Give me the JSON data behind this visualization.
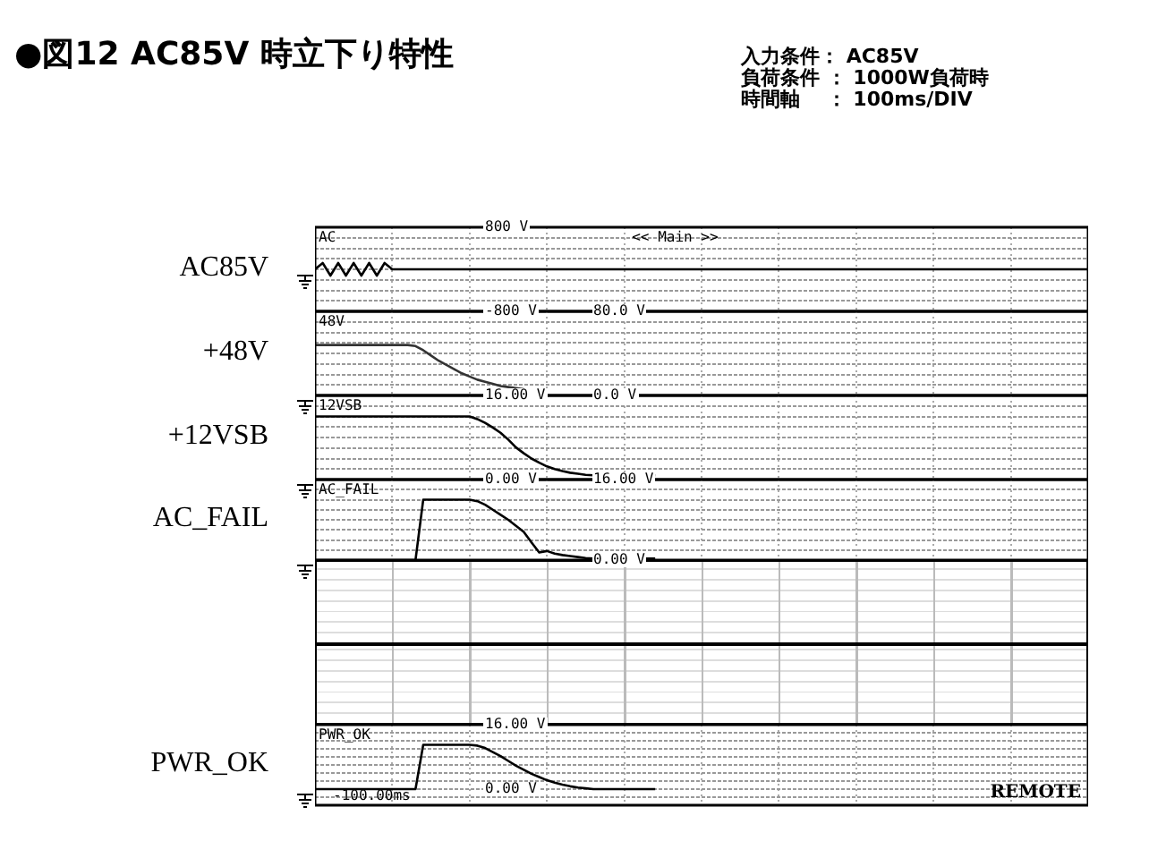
{
  "chart_data": [
    {
      "type": "other",
      "title": "●図12 AC85V 時立下り特性",
      "annotations": [
        "入力条件： AC85V",
        "負荷条件 ： 1000W負荷時",
        "時間軸　 ： 100ms/DIV"
      ]
    },
    {
      "type": "line",
      "ylabel": "AC85V",
      "annotations": [
        "<< Main >>"
      ],
      "grid": true,
      "legend": "top left",
      "tick_labels": "y",
      "marker": "none",
      "categories": [
        null,
        null,
        null,
        null,
        null,
        null,
        null,
        null,
        null,
        null,
        null,
        null,
        null,
        null,
        null,
        null,
        null,
        null,
        null,
        null,
        null,
        null,
        null,
        null,
        null,
        null,
        null,
        null,
        null,
        null,
        null,
        null,
        null,
        null,
        null,
        null,
        null,
        null,
        null,
        null,
        null,
        null,
        null,
        null,
        null,
        null,
        null,
        null,
        null,
        null,
        null,
        null,
        null,
        null,
        null,
        null,
        null,
        null,
        null,
        null,
        null,
        null,
        null,
        null,
        null,
        null,
        null,
        null,
        null,
        null,
        null,
        null,
        null,
        null,
        null,
        null,
        null,
        null,
        null,
        null,
        null,
        null,
        null,
        null,
        null,
        null,
        null,
        null,
        null,
        null,
        null,
        null,
        null,
        null,
        null,
        null,
        null,
        null,
        null,
        null,
        null
      ],
      "ylim": [
        -800,
        800
      ],
      "yticks": [
        {
          "value": -800,
          "label": "-800 V"
        },
        {
          "value": -600,
          "label": null
        },
        {
          "value": -400,
          "label": null
        },
        {
          "value": -200,
          "label": null
        },
        {
          "value": 0,
          "label": null
        },
        {
          "value": 200,
          "label": null
        },
        {
          "value": 400,
          "label": null
        },
        {
          "value": 600,
          "label": null
        },
        {
          "value": 800,
          "label": "800 V"
        }
      ],
      "series": [
        {
          "name": "AC",
          "color": "#000000",
          "values": [
            0,
            120,
            -120,
            120,
            -120,
            120,
            -120,
            120,
            -120,
            120,
            0,
            0,
            0,
            0,
            0,
            0,
            0,
            0,
            0,
            0,
            0,
            0,
            0,
            0,
            0,
            0,
            0,
            0,
            0,
            0,
            0,
            0,
            0,
            0,
            0,
            0,
            0,
            0,
            0,
            0,
            0,
            0,
            0,
            0,
            0,
            0,
            0,
            0,
            0,
            0,
            0,
            0,
            0,
            0,
            0,
            0,
            0,
            0,
            0,
            0,
            0,
            0,
            0,
            0,
            0,
            0,
            0,
            0,
            0,
            0,
            0,
            0,
            0,
            0,
            0,
            0,
            0,
            0,
            0,
            0,
            0,
            0,
            0,
            0,
            0,
            0,
            0,
            0,
            0,
            0,
            0,
            0,
            0,
            0,
            0,
            0,
            0,
            0,
            0,
            0,
            0
          ]
        }
      ]
    },
    {
      "type": "line",
      "ylabel": "+48V",
      "grid": true,
      "legend": "top left",
      "tick_labels": "y",
      "marker": "none",
      "categories": [
        null,
        null,
        null,
        null,
        null,
        null,
        null,
        null,
        null,
        null,
        null,
        null,
        null,
        null,
        null,
        null,
        null,
        null,
        null,
        null,
        null,
        null,
        null,
        null,
        null,
        null,
        null,
        null,
        null,
        null,
        null,
        null,
        null,
        null,
        null,
        null,
        null,
        null,
        null,
        null,
        null,
        null,
        null,
        null,
        null,
        null,
        null,
        null,
        null,
        null,
        null,
        null,
        null,
        null,
        null,
        null,
        null,
        null,
        null,
        null,
        null,
        null,
        null,
        null,
        null,
        null,
        null,
        null,
        null,
        null,
        null,
        null,
        null,
        null,
        null,
        null,
        null,
        null,
        null,
        null,
        null,
        null,
        null,
        null,
        null,
        null,
        null,
        null,
        null,
        null,
        null,
        null,
        null,
        null,
        null,
        null,
        null,
        null,
        null,
        null,
        null
      ],
      "ylim": [
        0,
        80
      ],
      "yticks": [
        {
          "value": 0,
          "label": "0.0 V"
        },
        {
          "value": 10,
          "label": null
        },
        {
          "value": 20,
          "label": null
        },
        {
          "value": 30,
          "label": null
        },
        {
          "value": 40,
          "label": null
        },
        {
          "value": 50,
          "label": null
        },
        {
          "value": 60,
          "label": null
        },
        {
          "value": 70,
          "label": null
        },
        {
          "value": 80,
          "label": "80.0 V"
        }
      ],
      "series": [
        {
          "name": "48V",
          "color": "#333333",
          "values": [
            48,
            48,
            48,
            48,
            48,
            48,
            48,
            48,
            48,
            48,
            48,
            48,
            48,
            47,
            43,
            38,
            33,
            29,
            25,
            21,
            18,
            15,
            13,
            11,
            9,
            8,
            7,
            6,
            null,
            null,
            null,
            null,
            null,
            null,
            null,
            null,
            null,
            null,
            null,
            null,
            null,
            null,
            null,
            null,
            null,
            null,
            null,
            null,
            null,
            null,
            null,
            null,
            null,
            null,
            null,
            null,
            null,
            null,
            null,
            null,
            null,
            null,
            null,
            null,
            null,
            null,
            null,
            null,
            null,
            null,
            null,
            null,
            null,
            null,
            null,
            null,
            null,
            null,
            null,
            null,
            null,
            null,
            null,
            null,
            null,
            null,
            null,
            null,
            null,
            null,
            null,
            null,
            null,
            null,
            null,
            null,
            null,
            null,
            null,
            null,
            null
          ]
        }
      ]
    },
    {
      "type": "line",
      "ylabel": "+12VSB",
      "grid": true,
      "legend": "top left",
      "tick_labels": "y",
      "marker": "none",
      "categories": [
        null,
        null,
        null,
        null,
        null,
        null,
        null,
        null,
        null,
        null,
        null,
        null,
        null,
        null,
        null,
        null,
        null,
        null,
        null,
        null,
        null,
        null,
        null,
        null,
        null,
        null,
        null,
        null,
        null,
        null,
        null,
        null,
        null,
        null,
        null,
        null,
        null,
        null,
        null,
        null,
        null,
        null,
        null,
        null,
        null,
        null,
        null,
        null,
        null,
        null,
        null,
        null,
        null,
        null,
        null,
        null,
        null,
        null,
        null,
        null,
        null,
        null,
        null,
        null,
        null,
        null,
        null,
        null,
        null,
        null,
        null,
        null,
        null,
        null,
        null,
        null,
        null,
        null,
        null,
        null,
        null,
        null,
        null,
        null,
        null,
        null,
        null,
        null,
        null,
        null,
        null,
        null,
        null,
        null,
        null,
        null,
        null,
        null,
        null,
        null,
        null
      ],
      "ylim": [
        0,
        16
      ],
      "yticks": [
        {
          "value": 0,
          "label": "0.00 V"
        },
        {
          "value": 2,
          "label": null
        },
        {
          "value": 4,
          "label": null
        },
        {
          "value": 6,
          "label": null
        },
        {
          "value": 8,
          "label": null
        },
        {
          "value": 10,
          "label": null
        },
        {
          "value": 12,
          "label": null
        },
        {
          "value": 14,
          "label": null
        },
        {
          "value": 16,
          "label": "16.00 V"
        }
      ],
      "series": [
        {
          "name": "12VSB",
          "color": "#000000",
          "values": [
            12,
            12,
            12,
            12,
            12,
            12,
            12,
            12,
            12,
            12,
            12,
            12,
            12,
            12,
            12,
            12,
            12,
            12,
            12,
            12,
            12,
            11.5,
            10.8,
            9.9,
            8.9,
            7.6,
            6.1,
            5,
            4,
            3.2,
            2.5,
            2,
            1.6,
            1.3,
            1.1,
            0.9,
            0.8,
            0.8,
            0.8,
            0.8,
            0.8,
            0.8,
            0.8,
            0.8,
            0.8,
            null,
            null,
            null,
            null,
            null,
            null,
            null,
            null,
            null,
            null,
            null,
            null,
            null,
            null,
            null,
            null,
            null,
            null,
            null,
            null,
            null,
            null,
            null,
            null,
            null,
            null,
            null,
            null,
            null,
            null,
            null,
            null,
            null,
            null,
            null,
            null,
            null,
            null,
            null,
            null,
            null,
            null,
            null,
            null,
            null,
            null,
            null,
            null,
            null,
            null,
            null,
            null,
            null,
            null,
            null,
            null
          ]
        }
      ]
    },
    {
      "type": "line",
      "ylabel": "AC_FAIL",
      "grid": true,
      "legend": "top left",
      "tick_labels": "y",
      "marker": "none",
      "categories": [
        null,
        null,
        null,
        null,
        null,
        null,
        null,
        null,
        null,
        null,
        null,
        null,
        null,
        null,
        null,
        null,
        null,
        null,
        null,
        null,
        null,
        null,
        null,
        null,
        null,
        null,
        null,
        null,
        null,
        null,
        null,
        null,
        null,
        null,
        null,
        null,
        null,
        null,
        null,
        null,
        null,
        null,
        null,
        null,
        null,
        null,
        null,
        null,
        null,
        null,
        null,
        null,
        null,
        null,
        null,
        null,
        null,
        null,
        null,
        null,
        null,
        null,
        null,
        null,
        null,
        null,
        null,
        null,
        null,
        null,
        null,
        null,
        null,
        null,
        null,
        null,
        null,
        null,
        null,
        null,
        null,
        null,
        null,
        null,
        null,
        null,
        null,
        null,
        null,
        null,
        null,
        null,
        null,
        null,
        null,
        null,
        null,
        null,
        null,
        null,
        null
      ],
      "ylim": [
        0,
        16
      ],
      "yticks": [
        {
          "value": 0,
          "label": "0.00 V"
        },
        {
          "value": 2,
          "label": null
        },
        {
          "value": 4,
          "label": null
        },
        {
          "value": 6,
          "label": null
        },
        {
          "value": 8,
          "label": null
        },
        {
          "value": 10,
          "label": null
        },
        {
          "value": 12,
          "label": null
        },
        {
          "value": 14,
          "label": null
        },
        {
          "value": 16,
          "label": "16.00 V"
        }
      ],
      "series": [
        {
          "name": "AC_FAIL",
          "color": "#000000",
          "values": [
            0,
            0,
            0,
            0,
            0,
            0,
            0,
            0,
            0,
            0,
            0,
            0,
            0,
            0,
            12,
            12,
            12,
            12,
            12,
            12,
            12,
            11.7,
            11,
            10,
            9,
            8,
            6.8,
            5.6,
            3.5,
            1.5,
            1.8,
            1.3,
            1,
            0.8,
            0.6,
            0.4,
            0.3,
            0.3,
            0.3,
            0.3,
            0.3,
            0.3,
            0.3,
            0.3,
            0.3,
            null,
            null,
            null,
            null,
            null,
            null,
            null,
            null,
            null,
            null,
            null,
            null,
            null,
            null,
            null,
            null,
            null,
            null,
            null,
            null,
            null,
            null,
            null,
            null,
            null,
            null,
            null,
            null,
            null,
            null,
            null,
            null,
            null,
            null,
            null,
            null,
            null,
            null,
            null,
            null,
            null,
            null,
            null,
            null,
            null,
            null,
            null,
            null,
            null,
            null,
            null,
            null,
            null,
            null,
            null,
            null
          ]
        }
      ]
    },
    {
      "type": "line",
      "ylabel": "PWR_OK",
      "annotations": [
        "-100.00ms",
        "REMOTE"
      ],
      "grid": true,
      "legend": "top left",
      "tick_labels": "y",
      "marker": "none",
      "categories": [
        null,
        null,
        null,
        null,
        null,
        null,
        null,
        null,
        null,
        null,
        null,
        null,
        null,
        null,
        null,
        null,
        null,
        null,
        null,
        null,
        null,
        null,
        null,
        null,
        null,
        null,
        null,
        null,
        null,
        null,
        null,
        null,
        null,
        null,
        null,
        null,
        null,
        null,
        null,
        null,
        null,
        null,
        null,
        null,
        null,
        null,
        null,
        null,
        null,
        null,
        null,
        null,
        null,
        null,
        null,
        null,
        null,
        null,
        null,
        null,
        null,
        null,
        null,
        null,
        null,
        null,
        null,
        null,
        null,
        null,
        null,
        null,
        null,
        null,
        null,
        null,
        null,
        null,
        null,
        null,
        null,
        null,
        null,
        null,
        null,
        null,
        null,
        null,
        null,
        null,
        null,
        null,
        null,
        null,
        null,
        null,
        null,
        null,
        null,
        null,
        null
      ],
      "ylim": [
        -4,
        16
      ],
      "yticks": [
        {
          "value": -4,
          "label": null
        },
        {
          "value": -2,
          "label": null
        },
        {
          "value": 0,
          "label": "0.00 V"
        },
        {
          "value": 2,
          "label": null
        },
        {
          "value": 4,
          "label": null
        },
        {
          "value": 6,
          "label": null
        },
        {
          "value": 8,
          "label": null
        },
        {
          "value": 10,
          "label": null
        },
        {
          "value": 12,
          "label": null
        },
        {
          "value": 14,
          "label": null
        },
        {
          "value": 16,
          "label": "16.00 V"
        }
      ],
      "series": [
        {
          "name": "PWR_OK",
          "color": "#000000",
          "values": [
            0,
            0,
            0,
            0,
            0,
            0,
            0,
            0,
            0,
            0,
            0,
            0,
            0,
            0,
            11,
            11,
            11,
            11,
            11,
            11,
            11,
            10.8,
            10.2,
            9.2,
            8.2,
            7,
            5.8,
            4.8,
            3.8,
            3,
            2.2,
            1.6,
            1.1,
            0.7,
            0.4,
            0.2,
            0,
            0,
            0,
            0,
            0,
            0,
            0,
            0,
            0,
            null,
            null,
            null,
            null,
            null,
            null,
            null,
            null,
            null,
            null,
            null,
            null,
            null,
            null,
            null,
            null,
            null,
            null,
            null,
            null,
            null,
            null,
            null,
            null,
            null,
            null,
            null,
            null,
            null,
            null,
            null,
            null,
            null,
            null,
            null,
            null,
            null,
            null,
            null,
            null,
            null,
            null,
            null,
            null,
            null,
            null,
            null,
            null,
            null,
            null,
            null,
            null,
            null,
            null,
            null,
            null
          ]
        }
      ]
    }
  ]
}
